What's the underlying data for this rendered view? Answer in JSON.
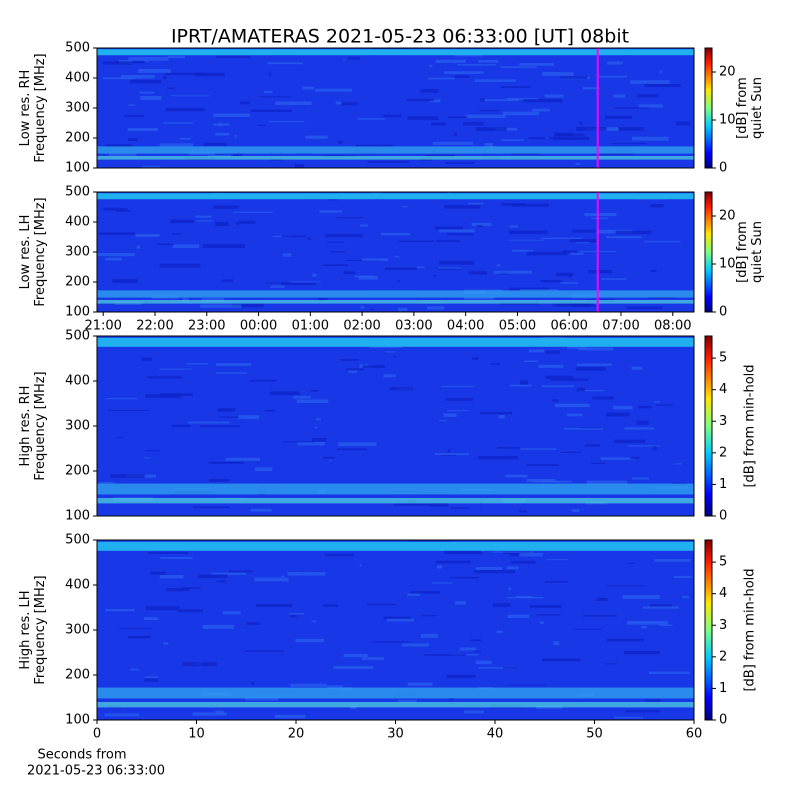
{
  "figure_title": "IPRT/AMATERAS 2021-05-23 06:33:00 [UT]   08bit",
  "chart_data": [
    {
      "type": "heatmap",
      "ylabel": [
        "Low res. RH",
        "Frequency [MHz]"
      ],
      "ylim": [
        100,
        500
      ],
      "yticks": [
        100,
        200,
        300,
        400,
        500
      ],
      "xlim": [
        20.88,
        32.41
      ],
      "cursor_x": 30.55,
      "cursor_color": "#ff00ff",
      "colorbar": {
        "lim": [
          0,
          25
        ],
        "ticks": [
          0,
          10,
          20
        ],
        "label": [
          "[dB] from",
          "quiet Sun"
        ]
      }
    },
    {
      "type": "heatmap",
      "ylabel": [
        "Low res. LH",
        "Frequency [MHz]"
      ],
      "ylim": [
        100,
        500
      ],
      "yticks": [
        100,
        200,
        300,
        400,
        500
      ],
      "xlim": [
        20.88,
        32.41
      ],
      "cursor_x": 30.55,
      "cursor_color": "#ff00ff",
      "xticks": [
        {
          "value": 21,
          "label": "21:00"
        },
        {
          "value": 22,
          "label": "22:00"
        },
        {
          "value": 23,
          "label": "23:00"
        },
        {
          "value": 24,
          "label": "00:00"
        },
        {
          "value": 25,
          "label": "01:00"
        },
        {
          "value": 26,
          "label": "02:00"
        },
        {
          "value": 27,
          "label": "03:00"
        },
        {
          "value": 28,
          "label": "04:00"
        },
        {
          "value": 29,
          "label": "05:00"
        },
        {
          "value": 30,
          "label": "06:00"
        },
        {
          "value": 31,
          "label": "07:00"
        },
        {
          "value": 32,
          "label": "08:00"
        }
      ],
      "colorbar": {
        "lim": [
          0,
          25
        ],
        "ticks": [
          0,
          10,
          20
        ],
        "label": [
          "[dB] from",
          "quiet Sun"
        ]
      }
    },
    {
      "type": "heatmap",
      "ylabel": [
        "High res. RH",
        "Frequency [MHz]"
      ],
      "ylim": [
        100,
        500
      ],
      "yticks": [
        100,
        200,
        300,
        400,
        500
      ],
      "xlim": [
        0,
        60
      ],
      "colorbar": {
        "lim": [
          0,
          5.7
        ],
        "ticks": [
          0,
          1,
          2,
          3,
          4,
          5
        ],
        "label": [
          "[dB] from min-hold"
        ]
      }
    },
    {
      "type": "heatmap",
      "ylabel": [
        "High res. LH",
        "Frequency [MHz]"
      ],
      "ylim": [
        100,
        500
      ],
      "yticks": [
        100,
        200,
        300,
        400,
        500
      ],
      "xlim": [
        0,
        60
      ],
      "xticks": [
        0,
        10,
        20,
        30,
        40,
        50,
        60
      ],
      "xlabel": [
        "Seconds from",
        "2021-05-23 06:33:00"
      ],
      "colorbar": {
        "lim": [
          0,
          5.7
        ],
        "ticks": [
          0,
          1,
          2,
          3,
          4,
          5
        ],
        "label": [
          "[dB] from min-hold"
        ]
      }
    }
  ]
}
